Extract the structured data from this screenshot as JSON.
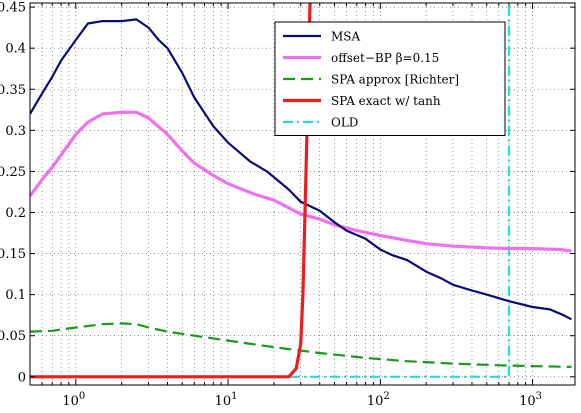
{
  "chart_data": {
    "type": "line",
    "title": "",
    "xlabel": "",
    "ylabel": "",
    "x_scale": "log",
    "xlim": [
      0.5,
      1900
    ],
    "ylim": [
      -0.01,
      0.455
    ],
    "grid": true,
    "legend_position": "top-right",
    "x_ticks": [
      {
        "value": 1,
        "base": "10",
        "exp": "0"
      },
      {
        "value": 10,
        "base": "10",
        "exp": "1"
      },
      {
        "value": 100,
        "base": "10",
        "exp": "2"
      },
      {
        "value": 1000,
        "base": "10",
        "exp": "3"
      }
    ],
    "y_ticks": [
      {
        "value": 0,
        "label": "0"
      },
      {
        "value": 0.05,
        "label": "0.05"
      },
      {
        "value": 0.1,
        "label": "0.1"
      },
      {
        "value": 0.15,
        "label": "0.15"
      },
      {
        "value": 0.2,
        "label": "0.2"
      },
      {
        "value": 0.25,
        "label": "0.25"
      },
      {
        "value": 0.3,
        "label": "0.3"
      },
      {
        "value": 0.35,
        "label": "0.35"
      },
      {
        "value": 0.4,
        "label": "0.4"
      },
      {
        "value": 0.45,
        "label": "0.45"
      }
    ],
    "series": [
      {
        "name": "MSA",
        "color": "#0a0a7a",
        "style": "solid",
        "points": [
          [
            0.5,
            0.32
          ],
          [
            0.6,
            0.345
          ],
          [
            0.7,
            0.365
          ],
          [
            0.8,
            0.385
          ],
          [
            1.0,
            0.41
          ],
          [
            1.2,
            0.43
          ],
          [
            1.5,
            0.433
          ],
          [
            2.0,
            0.433
          ],
          [
            2.5,
            0.435
          ],
          [
            3.0,
            0.425
          ],
          [
            3.5,
            0.41
          ],
          [
            4.0,
            0.4
          ],
          [
            5.0,
            0.37
          ],
          [
            6.0,
            0.34
          ],
          [
            8.0,
            0.305
          ],
          [
            10.0,
            0.285
          ],
          [
            14.0,
            0.262
          ],
          [
            18.0,
            0.25
          ],
          [
            25.0,
            0.228
          ],
          [
            30.0,
            0.213
          ],
          [
            40.0,
            0.202
          ],
          [
            50.0,
            0.188
          ],
          [
            60.0,
            0.178
          ],
          [
            80.0,
            0.168
          ],
          [
            100.0,
            0.155
          ],
          [
            120.0,
            0.148
          ],
          [
            150.0,
            0.142
          ],
          [
            200.0,
            0.128
          ],
          [
            250.0,
            0.12
          ],
          [
            300.0,
            0.112
          ],
          [
            400.0,
            0.105
          ],
          [
            500.0,
            0.1
          ],
          [
            700.0,
            0.092
          ],
          [
            1000.0,
            0.085
          ],
          [
            1300.0,
            0.082
          ],
          [
            1600.0,
            0.075
          ],
          [
            1800.0,
            0.07
          ]
        ]
      },
      {
        "name": "offset−BP β=0.15",
        "color": "#f070f0",
        "style": "solid-thick",
        "points": [
          [
            0.5,
            0.22
          ],
          [
            0.6,
            0.24
          ],
          [
            0.7,
            0.255
          ],
          [
            0.8,
            0.27
          ],
          [
            1.0,
            0.295
          ],
          [
            1.2,
            0.31
          ],
          [
            1.5,
            0.32
          ],
          [
            2.0,
            0.322
          ],
          [
            2.5,
            0.322
          ],
          [
            3.0,
            0.315
          ],
          [
            4.0,
            0.295
          ],
          [
            5.0,
            0.275
          ],
          [
            6.0,
            0.26
          ],
          [
            8.0,
            0.245
          ],
          [
            10.0,
            0.235
          ],
          [
            15.0,
            0.222
          ],
          [
            20.0,
            0.215
          ],
          [
            30.0,
            0.198
          ],
          [
            40.0,
            0.192
          ],
          [
            50.0,
            0.185
          ],
          [
            70.0,
            0.178
          ],
          [
            100.0,
            0.172
          ],
          [
            150.0,
            0.166
          ],
          [
            200.0,
            0.162
          ],
          [
            300.0,
            0.159
          ],
          [
            500.0,
            0.157
          ],
          [
            700.0,
            0.156
          ],
          [
            1000.0,
            0.156
          ],
          [
            1500.0,
            0.155
          ],
          [
            1800.0,
            0.153
          ]
        ]
      },
      {
        "name": "SPA approx [Richter]",
        "color": "#1a9a1a",
        "style": "dashed",
        "points": [
          [
            0.5,
            0.055
          ],
          [
            0.7,
            0.056
          ],
          [
            1.0,
            0.06
          ],
          [
            1.5,
            0.064
          ],
          [
            2.0,
            0.065
          ],
          [
            2.5,
            0.064
          ],
          [
            3.0,
            0.06
          ],
          [
            4.0,
            0.055
          ],
          [
            6.0,
            0.05
          ],
          [
            10.0,
            0.044
          ],
          [
            20.0,
            0.036
          ],
          [
            40.0,
            0.029
          ],
          [
            80.0,
            0.023
          ],
          [
            150.0,
            0.019
          ],
          [
            300.0,
            0.016
          ],
          [
            600.0,
            0.014
          ],
          [
            1000.0,
            0.013
          ],
          [
            1800.0,
            0.012
          ]
        ]
      },
      {
        "name": "SPA exact w/ tanh",
        "color": "#ee1c1c",
        "style": "solid-thick",
        "points": [
          [
            0.5,
            0.0
          ],
          [
            20.0,
            0.0
          ],
          [
            25.0,
            0.0
          ],
          [
            28.0,
            0.01
          ],
          [
            30.0,
            0.04
          ],
          [
            31.0,
            0.1
          ],
          [
            32.0,
            0.2
          ],
          [
            33.0,
            0.3
          ],
          [
            33.5,
            0.35
          ],
          [
            34.0,
            0.4
          ],
          [
            34.5,
            0.455
          ]
        ]
      },
      {
        "name": "OLD",
        "color": "#22dddd",
        "style": "dashdot",
        "points": [
          [
            0.5,
            0.0
          ],
          [
            640.0,
            0.0
          ],
          [
            700.0,
            0.0
          ],
          [
            700.0,
            0.455
          ]
        ]
      }
    ]
  }
}
